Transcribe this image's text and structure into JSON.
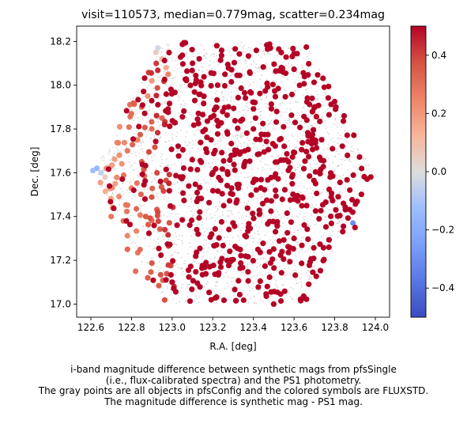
{
  "chart_data": {
    "type": "scatter",
    "title": "visit=110573, median=0.779mag, scatter=0.234mag",
    "xlabel": "R.A. [deg]",
    "ylabel": "Dec. [deg]",
    "xlim": [
      122.53,
      124.07
    ],
    "ylim": [
      16.94,
      18.27
    ],
    "xticks": [
      122.6,
      122.8,
      123.0,
      123.2,
      123.4,
      123.6,
      123.8,
      124.0
    ],
    "xticklabels": [
      "122.6",
      "122.8",
      "123.0",
      "123.2",
      "123.4",
      "123.6",
      "123.8",
      "124.0"
    ],
    "yticks": [
      17.0,
      17.2,
      17.4,
      17.6,
      17.8,
      18.0,
      18.2
    ],
    "yticklabels": [
      "17.0",
      "17.2",
      "17.4",
      "17.6",
      "17.8",
      "18.0",
      "18.2"
    ],
    "colorbar": {
      "colormap": "coolwarm",
      "range": [
        -0.5,
        0.5
      ],
      "ticks": [
        -0.4,
        -0.2,
        0.0,
        0.2,
        0.4
      ],
      "ticklabels": [
        "−0.4",
        "−0.2",
        "0.0",
        "0.2",
        "0.4"
      ]
    },
    "field": {
      "center_ra": 123.305,
      "center_dec": 17.6,
      "radius_deg": 0.69
    },
    "background_points": {
      "color": "#c8c8c8",
      "approx_count": 2200
    },
    "series": [
      {
        "color_by": "magnitude difference",
        "approx_count": 700,
        "points": [
          [
            122.61,
            17.61,
            -0.12
          ],
          [
            122.63,
            17.62,
            -0.15
          ],
          [
            122.65,
            17.6,
            -0.05
          ],
          [
            122.67,
            17.58,
            0.05
          ],
          [
            122.7,
            17.63,
            0.12
          ],
          [
            122.72,
            17.55,
            0.18
          ],
          [
            122.74,
            17.68,
            0.22
          ],
          [
            122.78,
            17.7,
            0.28
          ],
          [
            122.8,
            17.53,
            0.26
          ],
          [
            122.83,
            17.75,
            0.25
          ],
          [
            122.85,
            17.9,
            0.3
          ],
          [
            122.88,
            17.95,
            0.22
          ],
          [
            122.9,
            18.02,
            0.2
          ],
          [
            122.92,
            18.15,
            0.05
          ],
          [
            122.95,
            18.12,
            0.1
          ],
          [
            122.93,
            18.17,
            -0.02
          ],
          [
            122.97,
            18.08,
            0.15
          ],
          [
            122.98,
            18.05,
            0.25
          ],
          [
            122.87,
            17.4,
            0.35
          ],
          [
            122.76,
            17.38,
            0.3
          ],
          [
            122.7,
            17.4,
            0.28
          ],
          [
            122.78,
            17.25,
            0.32
          ],
          [
            122.82,
            17.15,
            0.3
          ],
          [
            122.88,
            17.12,
            0.35
          ],
          [
            122.95,
            17.85,
            0.32
          ],
          [
            122.9,
            17.8,
            0.3
          ],
          [
            122.85,
            17.65,
            0.35
          ],
          [
            123.89,
            17.37,
            -0.3
          ],
          [
            123.9,
            17.35,
            0.5
          ],
          [
            123.2,
            17.6,
            0.5
          ],
          [
            123.4,
            17.8,
            0.5
          ],
          [
            123.6,
            17.3,
            0.5
          ],
          [
            123.0,
            17.1,
            0.5
          ],
          [
            123.7,
            17.9,
            0.5
          ],
          [
            123.1,
            18.1,
            0.5
          ],
          [
            123.5,
            17.0,
            0.5
          ]
        ]
      }
    ]
  },
  "caption_lines": [
    "i-band magnitude difference between synthetic mags from pfsSingle",
    "(i.e., flux-calibrated spectra) and the PS1 photometry.",
    "The gray points are all objects in pfsConfig and the colored symbols are FLUXSTD.",
    "The magnitude difference is synthetic mag - PS1 mag."
  ]
}
